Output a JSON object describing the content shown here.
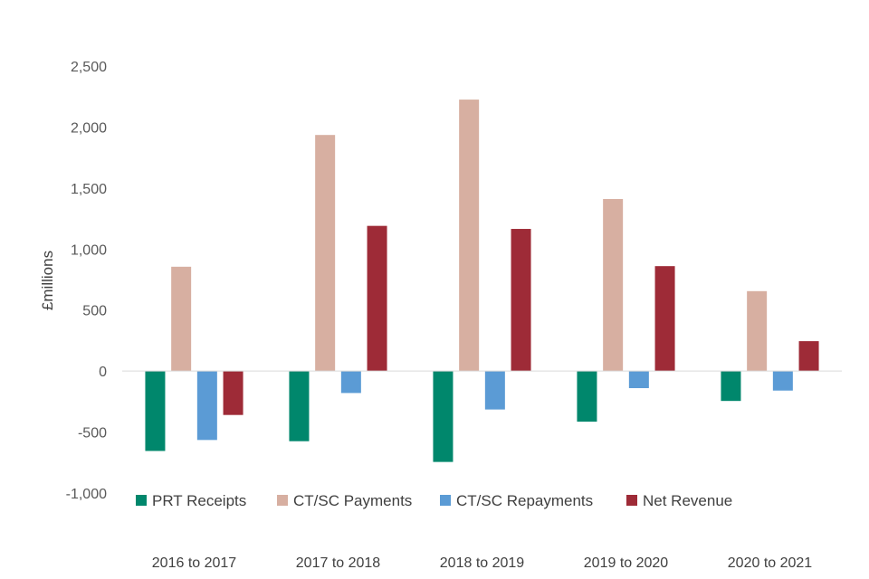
{
  "chart_data": {
    "type": "bar",
    "ylabel": "£millions",
    "ylim": [
      -1000,
      2500
    ],
    "yticks": [
      2500,
      2000,
      1500,
      1000,
      500,
      0,
      -500,
      -1000
    ],
    "ytick_labels": [
      "2,500",
      "2,000",
      "1,500",
      "1,000",
      "500",
      "0",
      "-500",
      "-1,000"
    ],
    "categories": [
      "2016 to 2017",
      "2017 to 2018",
      "2018 to 2019",
      "2019 to 2020",
      "2020 to 2021"
    ],
    "series": [
      {
        "name": "PRT Receipts",
        "color": "#00876C",
        "values": [
          -655,
          -575,
          -745,
          -415,
          -245
        ]
      },
      {
        "name": "CT/SC Payments",
        "color": "#D7AFA1",
        "values": [
          855,
          1935,
          2225,
          1410,
          655
        ]
      },
      {
        "name": "CT/SC Repayments",
        "color": "#5B9BD5",
        "values": [
          -565,
          -180,
          -315,
          -140,
          -160
        ]
      },
      {
        "name": "Net Revenue",
        "color": "#9E2B37",
        "values": [
          -360,
          1190,
          1165,
          860,
          245
        ]
      }
    ],
    "legend_position": "bottom",
    "grid": false
  }
}
